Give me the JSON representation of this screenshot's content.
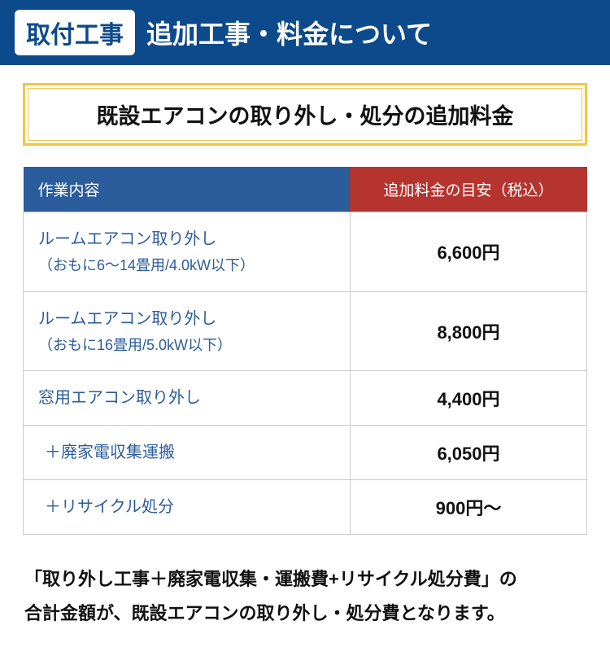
{
  "header": {
    "badge": "取付工事",
    "title": "追加工事・料金について"
  },
  "subheading": "既設エアコンの取り外し・処分の追加料金",
  "table": {
    "columns": {
      "work": "作業内容",
      "price": "追加料金の目安（税込）"
    },
    "rows": [
      {
        "work_line1": "ルームエアコン取り外し",
        "work_line2": "（おもに6～14畳用/4.0kW以下）",
        "price": "6,600円",
        "indent": false
      },
      {
        "work_line1": "ルームエアコン取り外し",
        "work_line2": "（おもに16畳用/5.0kW以下）",
        "price": "8,800円",
        "indent": false
      },
      {
        "work_line1": "窓用エアコン取り外し",
        "work_line2": "",
        "price": "4,400円",
        "indent": false
      },
      {
        "work_line1": "＋廃家電収集運搬",
        "work_line2": "",
        "price": "6,050円",
        "indent": true
      },
      {
        "work_line1": "＋リサイクル処分",
        "work_line2": "",
        "price": "900円～",
        "indent": true
      }
    ]
  },
  "footnote": {
    "line1": "「取り外し工事＋廃家電収集・運搬費+リサイクル処分費」の",
    "line2": "合計金額が、既設エアコンの取り外し・処分費となります。"
  },
  "colors": {
    "header_bg": "#0c4a8b",
    "badge_bg": "#ffffff",
    "subheading_border": "#f5c542",
    "col_work_bg": "#2b5c9b",
    "col_price_bg": "#b5342f",
    "work_text": "#2b5c9b",
    "cell_border": "#c9c9c9"
  }
}
